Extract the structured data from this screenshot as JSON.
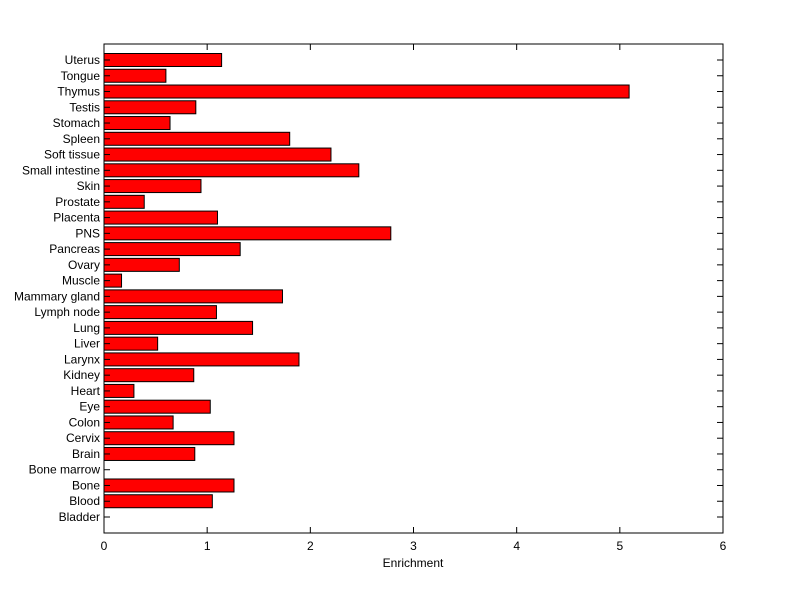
{
  "chart_data": {
    "type": "bar",
    "orientation": "horizontal",
    "title": "",
    "xlabel": "Enrichment",
    "ylabel": "",
    "xlim": [
      0,
      6
    ],
    "xticks": [
      0,
      1,
      2,
      3,
      4,
      5,
      6
    ],
    "grid": false,
    "bar_color": "#ff0000",
    "categories": [
      "Bladder",
      "Blood",
      "Bone",
      "Bone marrow",
      "Brain",
      "Cervix",
      "Colon",
      "Eye",
      "Heart",
      "Kidney",
      "Larynx",
      "Liver",
      "Lung",
      "Lymph node",
      "Mammary gland",
      "Muscle",
      "Ovary",
      "Pancreas",
      "PNS",
      "Placenta",
      "Prostate",
      "Skin",
      "Small intestine",
      "Soft tissue",
      "Spleen",
      "Stomach",
      "Testis",
      "Thymus",
      "Tongue",
      "Uterus"
    ],
    "values": [
      0,
      1.05,
      1.26,
      0,
      0.88,
      1.26,
      0.67,
      1.03,
      0.29,
      0.87,
      1.89,
      0.52,
      1.44,
      1.09,
      1.73,
      0.17,
      0.73,
      1.32,
      2.78,
      1.1,
      0.39,
      0.94,
      2.47,
      2.2,
      1.8,
      0.64,
      0.89,
      5.09,
      0.6,
      1.14
    ]
  }
}
